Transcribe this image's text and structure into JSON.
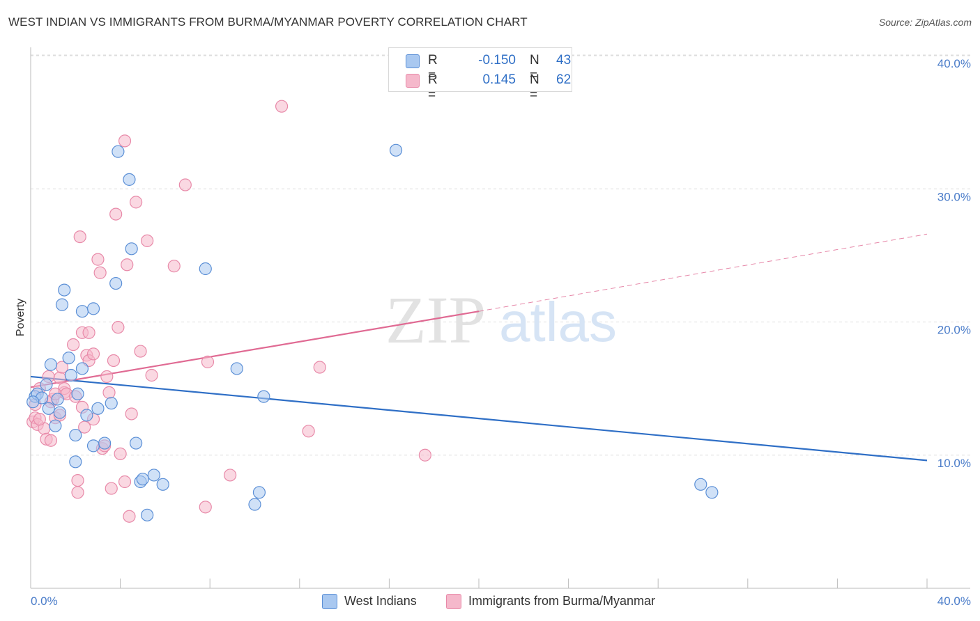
{
  "header": {
    "title": "WEST INDIAN VS IMMIGRANTS FROM BURMA/MYANMAR POVERTY CORRELATION CHART",
    "source": "Source: ZipAtlas.com"
  },
  "watermark": {
    "zip": "ZIP",
    "atlas": "atlas"
  },
  "colors": {
    "blue_fill": "#a9c8f0",
    "blue_stroke": "#5b8fd6",
    "blue_line": "#2f6fc6",
    "pink_fill": "#f5b8cb",
    "pink_stroke": "#e88aa9",
    "pink_line": "#e06a93",
    "tick_text": "#4a7cc9",
    "grid": "#dddddd"
  },
  "legend_top": {
    "rows": [
      {
        "r_label": "R =",
        "r_value": "-0.150",
        "n_label": "N =",
        "n_value": "43"
      },
      {
        "r_label": "R =",
        "r_value": "0.145",
        "n_label": "N =",
        "n_value": "62"
      }
    ]
  },
  "legend_bottom": {
    "items": [
      {
        "label": "West Indians"
      },
      {
        "label": "Immigrants from Burma/Myanmar"
      }
    ]
  },
  "chart_data": {
    "type": "scatter",
    "title": "WEST INDIAN VS IMMIGRANTS FROM BURMA/MYANMAR POVERTY CORRELATION CHART",
    "ylabel": "Poverty",
    "xlabel": "",
    "xlim": [
      0,
      40
    ],
    "ylim": [
      0,
      40
    ],
    "x_tick_labels": [
      "0.0%",
      "40.0%"
    ],
    "y_ticks": [
      10,
      20,
      30,
      40
    ],
    "y_tick_labels": [
      "10.0%",
      "20.0%",
      "30.0%",
      "40.0%"
    ],
    "grid": true,
    "legend_position": "top-center",
    "series": [
      {
        "name": "West Indians",
        "r": -0.15,
        "n": 43,
        "trend": {
          "x": [
            0,
            40
          ],
          "y": [
            15.9,
            9.6
          ],
          "dashed_from": null
        },
        "points": [
          [
            0.2,
            14.4
          ],
          [
            0.3,
            14.6
          ],
          [
            0.5,
            14.3
          ],
          [
            0.7,
            15.3
          ],
          [
            0.8,
            13.5
          ],
          [
            0.9,
            16.8
          ],
          [
            1.1,
            12.2
          ],
          [
            1.3,
            13.2
          ],
          [
            1.4,
            21.3
          ],
          [
            1.5,
            22.4
          ],
          [
            1.7,
            17.3
          ],
          [
            1.8,
            16.0
          ],
          [
            2.0,
            11.5
          ],
          [
            2.0,
            9.5
          ],
          [
            2.1,
            14.6
          ],
          [
            2.3,
            20.8
          ],
          [
            2.3,
            16.5
          ],
          [
            2.5,
            13.0
          ],
          [
            2.8,
            10.7
          ],
          [
            2.8,
            21.0
          ],
          [
            3.0,
            13.5
          ],
          [
            3.3,
            10.9
          ],
          [
            3.6,
            13.9
          ],
          [
            3.8,
            22.9
          ],
          [
            3.9,
            32.8
          ],
          [
            4.4,
            30.7
          ],
          [
            4.5,
            25.5
          ],
          [
            4.7,
            10.9
          ],
          [
            4.9,
            8.0
          ],
          [
            5.0,
            8.2
          ],
          [
            5.2,
            5.5
          ],
          [
            5.5,
            8.5
          ],
          [
            5.9,
            7.8
          ],
          [
            7.8,
            24.0
          ],
          [
            9.2,
            16.5
          ],
          [
            10.0,
            6.3
          ],
          [
            10.2,
            7.2
          ],
          [
            10.4,
            14.4
          ],
          [
            16.3,
            32.9
          ],
          [
            29.9,
            7.8
          ],
          [
            30.4,
            7.2
          ],
          [
            0.1,
            14.0
          ],
          [
            1.2,
            14.2
          ]
        ]
      },
      {
        "name": "Immigrants from Burma/Myanmar",
        "r": 0.145,
        "n": 62,
        "trend": {
          "x": [
            0,
            20,
            40
          ],
          "y": [
            15.1,
            20.8,
            26.6
          ],
          "dashed_from": 20
        },
        "points": [
          [
            0.1,
            12.5
          ],
          [
            0.2,
            12.8
          ],
          [
            0.2,
            13.8
          ],
          [
            0.3,
            12.3
          ],
          [
            0.4,
            15.0
          ],
          [
            0.6,
            12.0
          ],
          [
            0.7,
            11.2
          ],
          [
            0.8,
            15.9
          ],
          [
            0.9,
            14.0
          ],
          [
            1.0,
            14.2
          ],
          [
            1.1,
            12.8
          ],
          [
            1.3,
            13.0
          ],
          [
            1.3,
            15.8
          ],
          [
            1.4,
            16.6
          ],
          [
            1.5,
            14.7
          ],
          [
            1.5,
            15.0
          ],
          [
            1.6,
            14.6
          ],
          [
            1.9,
            18.3
          ],
          [
            2.0,
            14.4
          ],
          [
            2.1,
            7.2
          ],
          [
            2.1,
            8.1
          ],
          [
            2.2,
            26.4
          ],
          [
            2.3,
            13.6
          ],
          [
            2.3,
            19.2
          ],
          [
            2.4,
            12.1
          ],
          [
            2.5,
            17.5
          ],
          [
            2.6,
            19.2
          ],
          [
            2.6,
            17.1
          ],
          [
            2.8,
            12.7
          ],
          [
            2.8,
            17.6
          ],
          [
            3.0,
            24.7
          ],
          [
            3.1,
            23.7
          ],
          [
            3.2,
            10.5
          ],
          [
            3.3,
            10.7
          ],
          [
            3.4,
            15.9
          ],
          [
            3.5,
            14.7
          ],
          [
            3.6,
            7.5
          ],
          [
            3.7,
            17.1
          ],
          [
            3.8,
            28.1
          ],
          [
            3.9,
            19.6
          ],
          [
            4.0,
            10.1
          ],
          [
            4.2,
            33.6
          ],
          [
            4.2,
            8.0
          ],
          [
            4.3,
            24.3
          ],
          [
            4.4,
            5.4
          ],
          [
            4.5,
            13.1
          ],
          [
            4.7,
            29.0
          ],
          [
            4.9,
            17.8
          ],
          [
            5.2,
            26.1
          ],
          [
            5.4,
            16.0
          ],
          [
            6.4,
            24.2
          ],
          [
            6.9,
            30.3
          ],
          [
            7.8,
            6.1
          ],
          [
            7.9,
            17.0
          ],
          [
            8.9,
            8.5
          ],
          [
            11.2,
            36.2
          ],
          [
            12.4,
            11.8
          ],
          [
            12.9,
            16.6
          ],
          [
            17.6,
            10.0
          ],
          [
            1.1,
            14.6
          ],
          [
            0.4,
            12.7
          ],
          [
            0.9,
            11.1
          ]
        ]
      }
    ]
  }
}
